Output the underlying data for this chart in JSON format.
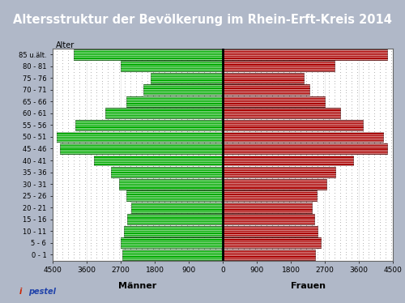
{
  "title": "Altersstruktur der Bevölkerung im Rhein-Erft-Kreis 2014",
  "title_bg": "#3355aa",
  "title_color": "white",
  "ylabel_label": "Alter",
  "xlabel_left": "Männer",
  "xlabel_right": "Frauen",
  "age_labels": [
    "0 - 1",
    "5 - 6",
    "10 - 11",
    "15 - 16",
    "20 - 21",
    "25 - 26",
    "30 - 31",
    "35 - 36",
    "40 - 41",
    "45 - 46",
    "50 - 51",
    "55 - 56",
    "60 - 61",
    "65 - 66",
    "70 - 71",
    "75 - 76",
    "80 - 81",
    "85 u.ält."
  ],
  "males": [
    2650,
    2700,
    2620,
    2530,
    2430,
    2550,
    2750,
    2950,
    3400,
    4300,
    4400,
    3900,
    3100,
    2550,
    2100,
    1900,
    2700,
    3950
  ],
  "females": [
    2450,
    2600,
    2500,
    2430,
    2350,
    2480,
    2750,
    2980,
    3450,
    4350,
    4250,
    3700,
    3100,
    2700,
    2300,
    2150,
    2950,
    4350
  ],
  "male_color": "#00aa00",
  "female_color": "#aa0000",
  "outer_bg": "#b0b8c8",
  "inner_bg": "#ffffff",
  "dot_color": "#cccccc",
  "xlim": 4500,
  "footer_bg": "#c8ccd8",
  "bar_linewidth": 0.5,
  "stripe_color": "white",
  "stripe_count": 6
}
